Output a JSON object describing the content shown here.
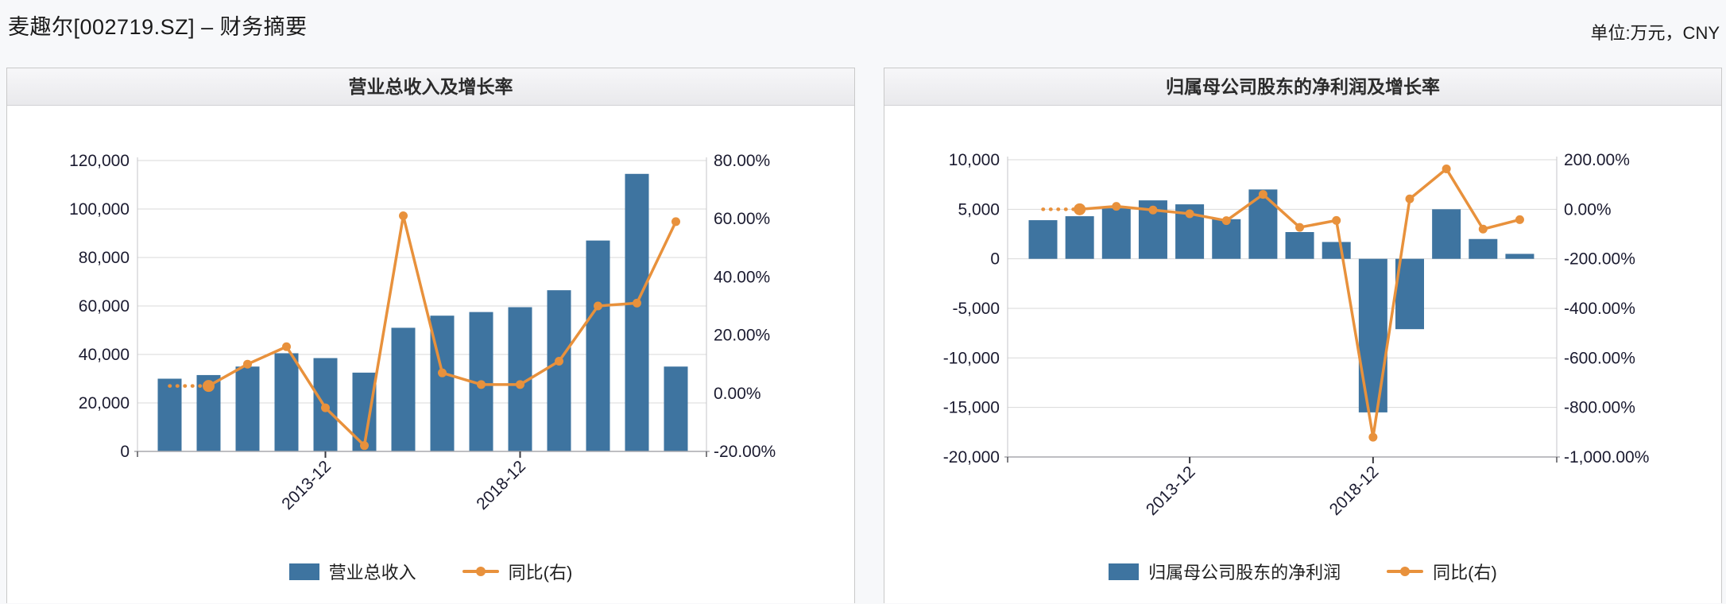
{
  "page": {
    "title": "麦趣尔[002719.SZ] – 财务摘要",
    "unit_label": "单位:万元，CNY"
  },
  "colors": {
    "bar": "#3e74a0",
    "line": "#e8913c",
    "grid": "#d9d9d9",
    "axis_line": "#a9a9ad",
    "side_axis_line": "#c6c6c9",
    "tick_text": "#1b1b30",
    "panel_border": "#c9c9c9",
    "page_bg": "#f7f8fa"
  },
  "chart_data": [
    {
      "type": "bar+line",
      "title": "营业总收入及增长率",
      "series": [
        {
          "name": "营业总收入",
          "type": "bar",
          "axis": "left",
          "values": [
            30000,
            31500,
            35000,
            40500,
            38500,
            32500,
            51000,
            56000,
            57500,
            59500,
            66500,
            87000,
            114500,
            35000
          ]
        },
        {
          "name": "同比(右)",
          "type": "line",
          "axis": "right",
          "values": [
            null,
            2.5,
            10,
            16,
            -5,
            -18,
            61,
            7,
            3,
            3,
            11,
            30,
            31,
            59
          ]
        }
      ],
      "x_ticks": [
        {
          "bar_index": 4,
          "label": "2013-12"
        },
        {
          "bar_index": 9,
          "label": "2018-12"
        }
      ],
      "left_axis": {
        "min": 0,
        "max": 120000,
        "ticks": [
          {
            "v": 120000,
            "label": "120,000"
          },
          {
            "v": 100000,
            "label": "100,000"
          },
          {
            "v": 80000,
            "label": "80,000"
          },
          {
            "v": 60000,
            "label": "60,000"
          },
          {
            "v": 40000,
            "label": "40,000"
          },
          {
            "v": 20000,
            "label": "20,000"
          },
          {
            "v": 0,
            "label": "0"
          }
        ]
      },
      "right_axis": {
        "min": -20,
        "max": 80,
        "ticks": [
          {
            "v": 80,
            "label": "80.00%"
          },
          {
            "v": 60,
            "label": "60.00%"
          },
          {
            "v": 40,
            "label": "40.00%"
          },
          {
            "v": 20,
            "label": "20.00%"
          },
          {
            "v": 0,
            "label": "0.00%"
          },
          {
            "v": -20,
            "label": "-20.00%"
          }
        ]
      },
      "legend": [
        "营业总收入",
        "同比(右)"
      ]
    },
    {
      "type": "bar+line",
      "title": "归属母公司股东的净利润及增长率",
      "series": [
        {
          "name": "归属母公司股东的净利润",
          "type": "bar",
          "axis": "left",
          "values": [
            3900,
            4300,
            5100,
            5900,
            5500,
            4000,
            7000,
            2700,
            1700,
            -15500,
            -7100,
            5000,
            2000,
            500
          ]
        },
        {
          "name": "同比(右)",
          "type": "line",
          "axis": "right",
          "values": [
            null,
            0,
            12,
            -3,
            -18,
            -46,
            60,
            -73,
            -45,
            -920,
            42,
            163,
            -80,
            -42
          ]
        }
      ],
      "x_ticks": [
        {
          "bar_index": 4,
          "label": "2013-12"
        },
        {
          "bar_index": 9,
          "label": "2018-12"
        }
      ],
      "left_axis": {
        "min": -20000,
        "max": 10000,
        "ticks": [
          {
            "v": 10000,
            "label": "10,000"
          },
          {
            "v": 5000,
            "label": "5,000"
          },
          {
            "v": 0,
            "label": "0"
          },
          {
            "v": -5000,
            "label": "-5,000"
          },
          {
            "v": -10000,
            "label": "-10,000"
          },
          {
            "v": -15000,
            "label": "-15,000"
          },
          {
            "v": -20000,
            "label": "-20,000"
          }
        ]
      },
      "right_axis": {
        "min": -1000,
        "max": 200,
        "ticks": [
          {
            "v": 200,
            "label": "200.00%"
          },
          {
            "v": 0,
            "label": "0.00%"
          },
          {
            "v": -200,
            "label": "-200.00%"
          },
          {
            "v": -400,
            "label": "-400.00%"
          },
          {
            "v": -600,
            "label": "-600.00%"
          },
          {
            "v": -800,
            "label": "-800.00%"
          },
          {
            "v": -1000,
            "label": "-1,000.00%"
          }
        ]
      },
      "legend": [
        "归属母公司股东的净利润",
        "同比(右)"
      ]
    }
  ]
}
